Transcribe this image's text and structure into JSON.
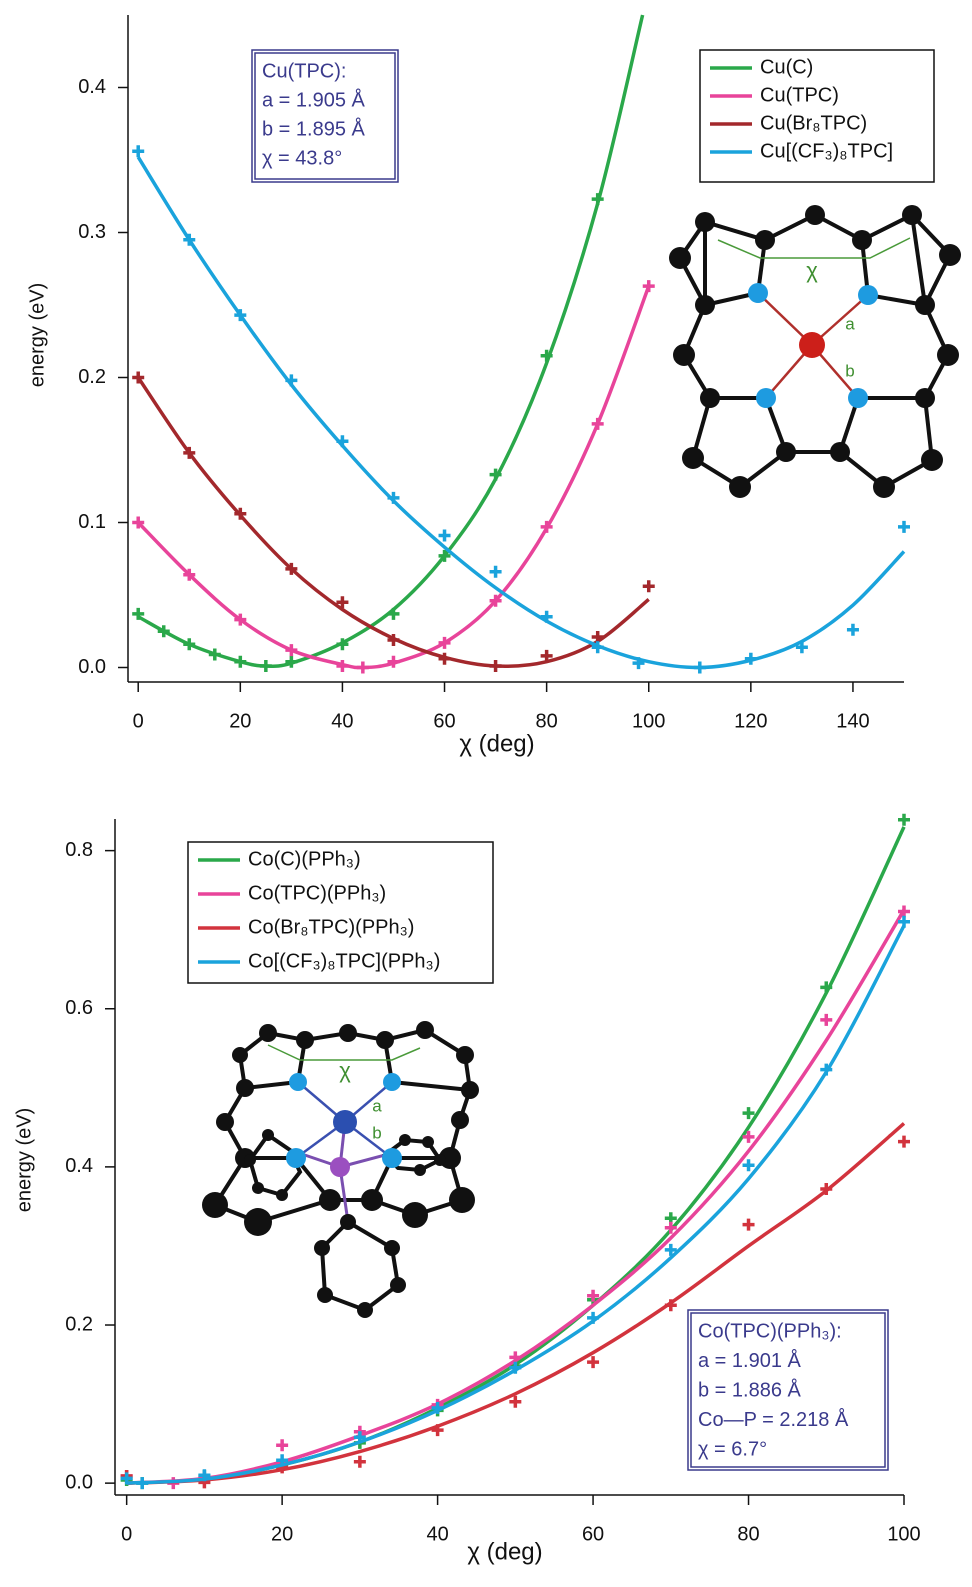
{
  "charts": [
    {
      "type": "line",
      "xlabel": "χ (deg)",
      "ylabel": "energy (eV)",
      "xlim": [
        -2,
        150
      ],
      "ylim": [
        -0.01,
        0.45
      ],
      "xticks": [
        0,
        20,
        40,
        60,
        80,
        100,
        120,
        140
      ],
      "yticks": [
        {
          "value": 0,
          "label": "0.0"
        },
        {
          "value": 0.1,
          "label": "0.1"
        },
        {
          "value": 0.2,
          "label": "0.2"
        },
        {
          "value": 0.3,
          "label": "0.3"
        },
        {
          "value": 0.4,
          "label": "0.4"
        }
      ],
      "legend": "upper right",
      "annotation": [
        "Cu(TPC):",
        "a = 1.905 Å",
        "b = 1.895 Å",
        "χ = 43.8°"
      ],
      "inset_labels": [
        "χ",
        "a",
        "b"
      ],
      "series": [
        {
          "name": "Cu(C)",
          "color": "#2aa84a",
          "x": [
            0,
            5,
            10,
            15,
            20,
            25,
            30,
            40,
            50,
            60,
            70,
            80,
            90
          ],
          "values": [
            0.037,
            0.025,
            0.016,
            0.009,
            0.004,
            0.001,
            0.004,
            0.016,
            0.037,
            0.077,
            0.133,
            0.215,
            0.323
          ],
          "fit": {
            "x": [
              0,
              10,
              20,
              25,
              30,
              40,
              50,
              60,
              70,
              80,
              90,
              98.8
            ],
            "values": [
              0.035,
              0.016,
              0.004,
              0.001,
              0.003,
              0.017,
              0.04,
              0.077,
              0.13,
              0.21,
              0.32,
              0.45
            ]
          }
        },
        {
          "name": "Cu(TPC)",
          "color": "#e8449a",
          "x": [
            0,
            10,
            20,
            30,
            40,
            44,
            50,
            60,
            70,
            80,
            90,
            100
          ],
          "values": [
            0.1,
            0.064,
            0.033,
            0.012,
            0.001,
            0,
            0.004,
            0.017,
            0.046,
            0.097,
            0.168,
            0.263
          ],
          "fit": {
            "x": [
              0,
              10,
              20,
              30,
              40,
              44,
              50,
              60,
              70,
              80,
              90,
              100
            ],
            "values": [
              0.1,
              0.064,
              0.033,
              0.012,
              0.002,
              0,
              0.003,
              0.017,
              0.046,
              0.096,
              0.168,
              0.263
            ]
          }
        },
        {
          "name": "Cu(Br₈TPC)",
          "color": "#a3282c",
          "x": [
            0,
            10,
            20,
            30,
            40,
            50,
            60,
            70,
            80,
            90,
            100
          ],
          "values": [
            0.2,
            0.148,
            0.106,
            0.068,
            0.045,
            0.019,
            0.006,
            0.001,
            0.008,
            0.021,
            0.056
          ],
          "fit": {
            "x": [
              0,
              10,
              20,
              30,
              40,
              50,
              60,
              70,
              80,
              90,
              100
            ],
            "values": [
              0.2,
              0.148,
              0.105,
              0.068,
              0.04,
              0.02,
              0.007,
              0.001,
              0.004,
              0.018,
              0.047
            ]
          }
        },
        {
          "name": "Cu[(CF₃)₈TPC]",
          "color": "#1aa3dc",
          "x": [
            0,
            10,
            20,
            30,
            40,
            50,
            60,
            70,
            80,
            90,
            98,
            110,
            120,
            130,
            140,
            150
          ],
          "values": [
            0.356,
            0.295,
            0.243,
            0.198,
            0.156,
            0.117,
            0.091,
            0.066,
            0.035,
            0.014,
            0.003,
            0,
            0.006,
            0.014,
            0.026,
            0.097
          ],
          "fit": {
            "x": [
              0,
              10,
              20,
              30,
              40,
              50,
              60,
              70,
              80,
              90,
              100,
              110,
              120,
              130,
              140,
              150
            ],
            "values": [
              0.352,
              0.295,
              0.243,
              0.195,
              0.153,
              0.115,
              0.083,
              0.055,
              0.032,
              0.015,
              0.004,
              0,
              0.005,
              0.018,
              0.043,
              0.08
            ]
          }
        }
      ]
    },
    {
      "type": "line",
      "xlabel": "χ (deg)",
      "ylabel": "energy (eV)",
      "xlim": [
        -1.5,
        100
      ],
      "ylim": [
        -0.015,
        0.84
      ],
      "xticks": [
        0,
        20,
        40,
        60,
        80,
        100
      ],
      "yticks": [
        {
          "value": 0,
          "label": "0.0"
        },
        {
          "value": 0.2,
          "label": "0.2"
        },
        {
          "value": 0.4,
          "label": "0.4"
        },
        {
          "value": 0.6,
          "label": "0.6"
        },
        {
          "value": 0.8,
          "label": "0.8"
        }
      ],
      "legend": "upper left",
      "annotation": [
        "Co(TPC)(PPh₃):",
        "a = 1.901 Å",
        "b = 1.886 Å",
        "Co—P = 2.218 Å",
        "χ = 6.7°"
      ],
      "inset_labels": [
        "χ",
        "a",
        "b"
      ],
      "series": [
        {
          "name": "Co(C)(PPh₃)",
          "color": "#2aa84a",
          "x": [
            0,
            2,
            10,
            20,
            30,
            40,
            50,
            60,
            70,
            80,
            90,
            100
          ],
          "values": [
            0.004,
            0,
            0.009,
            0.023,
            0.051,
            0.092,
            0.148,
            0.232,
            0.335,
            0.468,
            0.627,
            0.839
          ],
          "fit": {
            "x": [
              0,
              10,
              20,
              30,
              40,
              50,
              60,
              70,
              80,
              90,
              100
            ],
            "values": [
              0,
              0.005,
              0.023,
              0.052,
              0.095,
              0.15,
              0.225,
              0.32,
              0.45,
              0.62,
              0.83
            ]
          }
        },
        {
          "name": "Co(TPC)(PPh₃)",
          "color": "#e8449a",
          "x": [
            0,
            6,
            10,
            20,
            30,
            40,
            50,
            60,
            70,
            80,
            90,
            100
          ],
          "values": [
            0.009,
            0,
            0.006,
            0.048,
            0.065,
            0.099,
            0.159,
            0.237,
            0.323,
            0.438,
            0.586,
            0.723
          ],
          "fit": {
            "x": [
              0,
              10,
              20,
              30,
              40,
              50,
              60,
              70,
              80,
              90,
              100
            ],
            "values": [
              0,
              0.006,
              0.027,
              0.06,
              0.1,
              0.155,
              0.225,
              0.31,
              0.42,
              0.56,
              0.725
            ]
          }
        },
        {
          "name": "Co(Br₈TPC)(PPh₃)",
          "color": "#d2333d",
          "x": [
            0,
            10,
            20,
            30,
            40,
            50,
            60,
            70,
            80,
            90,
            100
          ],
          "values": [
            0.009,
            0.001,
            0.02,
            0.027,
            0.067,
            0.103,
            0.153,
            0.225,
            0.327,
            0.372,
            0.432
          ],
          "fit": {
            "x": [
              0,
              10,
              20,
              30,
              40,
              50,
              60,
              70,
              80,
              90,
              100
            ],
            "values": [
              0,
              0.004,
              0.017,
              0.04,
              0.072,
              0.113,
              0.165,
              0.228,
              0.3,
              0.37,
              0.455
            ]
          }
        },
        {
          "name": "Co[(CF₃)₈TPC](PPh₃)",
          "color": "#1aa3dc",
          "x": [
            0,
            2,
            10,
            20,
            30,
            40,
            50,
            60,
            70,
            80,
            90,
            100
          ],
          "values": [
            0.006,
            0,
            0.01,
            0.029,
            0.058,
            0.095,
            0.146,
            0.209,
            0.295,
            0.402,
            0.523,
            0.71
          ],
          "fit": {
            "x": [
              0,
              10,
              20,
              30,
              40,
              50,
              60,
              70,
              80,
              90,
              100
            ],
            "values": [
              0,
              0.005,
              0.023,
              0.052,
              0.092,
              0.143,
              0.205,
              0.285,
              0.385,
              0.52,
              0.705
            ]
          }
        }
      ]
    }
  ]
}
